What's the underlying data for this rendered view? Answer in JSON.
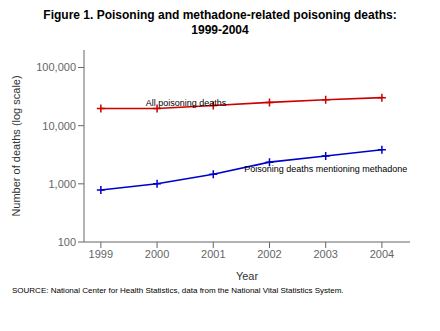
{
  "chart_data": {
    "type": "line",
    "title": "Figure 1. Poisoning and methadone-related poisoning deaths:",
    "subtitle": "1999-2004",
    "xlabel": "Year",
    "ylabel": "Number of deaths (log scale)",
    "source": "SOURCE: National Center for Health Statistics, data from the National Vital Statistics System.",
    "x": [
      1999,
      2000,
      2001,
      2002,
      2003,
      2004
    ],
    "series": [
      {
        "color": "#cc0000",
        "marker": "plus",
        "values": [
          19741,
          19741,
          22242,
          25150,
          27925,
          30308
        ]
      },
      {
        "color": "#0000cc",
        "marker": "plus",
        "values": [
          784,
          1002,
          1457,
          2360,
          3001,
          3849
        ]
      }
    ],
    "annotations": [
      {
        "text": "All poisoning deaths",
        "x": 1999.8,
        "y": 21500
      },
      {
        "text": "Poisoning deaths mentioning methadone",
        "x": 2001.55,
        "y": 1570
      }
    ],
    "xlim": [
      1998.7,
      2004.5
    ],
    "xticks": [
      1999,
      2000,
      2001,
      2002,
      2003,
      2004
    ],
    "ylim": [
      100,
      200000
    ],
    "yticks": [
      100,
      {
        "value": 1000,
        "label": "1,000"
      },
      {
        "value": 10000,
        "label": "10,000"
      },
      {
        "value": 100000,
        "label": "100,000"
      }
    ],
    "log": "y",
    "grid": false
  }
}
